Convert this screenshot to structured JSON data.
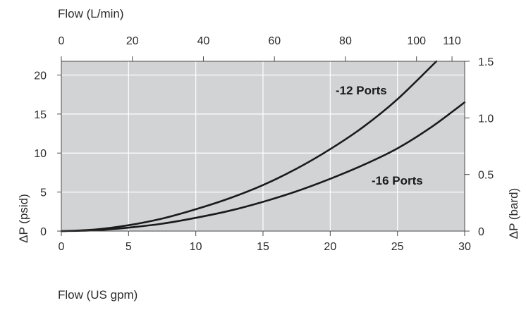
{
  "chart_data": {
    "type": "line",
    "plot_background": "#d2d3d5",
    "grid": true,
    "grid_color": "#ffffff",
    "line_color": "#1a1a1a",
    "x": {
      "label": "Flow (US gpm)",
      "range": [
        0,
        30
      ],
      "ticks": [
        "0",
        "5",
        "10",
        "15",
        "20",
        "25",
        "30"
      ]
    },
    "x2": {
      "label": "Flow (L/min)",
      "range": [
        0,
        113.56
      ],
      "tick_values": [
        0,
        20,
        40,
        60,
        80,
        100,
        110
      ],
      "ticks": [
        "0",
        "20",
        "40",
        "60",
        "80",
        "100",
        "110"
      ]
    },
    "y": {
      "label": "ΔP (psid)",
      "range": [
        0,
        21.76
      ],
      "tick_values": [
        0,
        5,
        10,
        15,
        20
      ],
      "ticks": [
        "0",
        "5",
        "10",
        "15",
        "20"
      ]
    },
    "y2": {
      "label": "ΔP (bard)",
      "range": [
        0,
        1.5
      ],
      "tick_values": [
        0,
        0.5,
        1.0,
        1.5
      ],
      "ticks": [
        "0",
        "0.5",
        "1.0",
        "1.5"
      ]
    },
    "series": [
      {
        "name": "-12 Ports",
        "x": [
          0,
          2.5,
          5,
          7.5,
          10,
          12.5,
          15,
          17.5,
          20,
          22.5,
          25,
          27.9
        ],
        "y": [
          0,
          0.2,
          0.75,
          1.6,
          2.8,
          4.2,
          5.9,
          8.0,
          10.5,
          13.4,
          16.9,
          21.76
        ]
      },
      {
        "name": "-16 Ports",
        "x": [
          0,
          2.5,
          5,
          7.5,
          10,
          12.5,
          15,
          17.5,
          20,
          22.5,
          25,
          27.5,
          30
        ],
        "y": [
          0,
          0.1,
          0.45,
          0.95,
          1.7,
          2.6,
          3.75,
          5.1,
          6.7,
          8.5,
          10.6,
          13.3,
          16.5
        ]
      }
    ]
  }
}
